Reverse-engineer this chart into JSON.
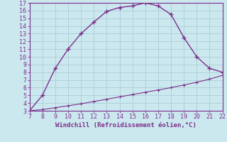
{
  "x_main": [
    7,
    8,
    9,
    10,
    11,
    12,
    13,
    14,
    15,
    16,
    17,
    18,
    19,
    20,
    21,
    22
  ],
  "y_main": [
    3,
    5,
    8.5,
    11,
    13,
    14.5,
    15.9,
    16.4,
    16.6,
    17.0,
    16.6,
    15.5,
    12.5,
    10,
    8.5,
    8
  ],
  "x_line2": [
    7,
    8,
    9,
    10,
    11,
    12,
    13,
    14,
    15,
    16,
    17,
    18,
    19,
    20,
    21,
    22
  ],
  "y_line2": [
    3,
    3.15,
    3.4,
    3.65,
    3.9,
    4.2,
    4.5,
    4.8,
    5.1,
    5.4,
    5.7,
    6.0,
    6.35,
    6.7,
    7.1,
    7.6
  ],
  "color": "#7b2f8b",
  "bg_color": "#cce8ef",
  "grid_color": "#aacdd8",
  "xlabel": "Windchill (Refroidissement éolien,°C)",
  "xlim": [
    7,
    22
  ],
  "ylim": [
    3,
    17
  ],
  "xticks": [
    7,
    8,
    9,
    10,
    11,
    12,
    13,
    14,
    15,
    16,
    17,
    18,
    19,
    20,
    21,
    22
  ],
  "yticks": [
    3,
    4,
    5,
    6,
    7,
    8,
    9,
    10,
    11,
    12,
    13,
    14,
    15,
    16,
    17
  ]
}
